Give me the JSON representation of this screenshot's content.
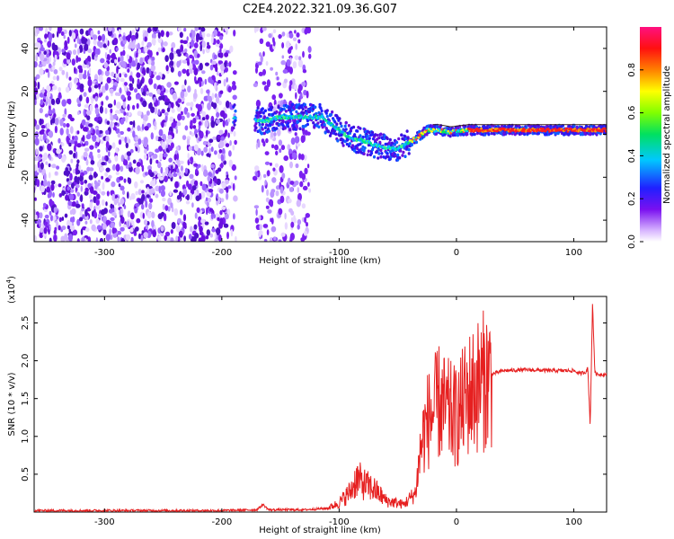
{
  "title": "C2E4.2022.321.09.36.G07",
  "colors": {
    "snr_line": "#e62020",
    "trace_dark": "#3a1f1f",
    "purple": "#6a10e0",
    "frame": "#000000"
  },
  "chart_data": [
    {
      "type": "heatmap",
      "xlabel": "Height of straight line (km)",
      "ylabel": "Frequency (Hz)",
      "xlim": [
        -360,
        128
      ],
      "ylim": [
        -50,
        50
      ],
      "xticks": [
        -300,
        -200,
        -100,
        0,
        100
      ],
      "yticks": [
        -40,
        -20,
        0,
        20,
        40
      ],
      "colorbar": {
        "label": "Normalized spectral amplitude",
        "range": [
          0,
          1
        ],
        "ticks": [
          0.0,
          0.2,
          0.4,
          0.6,
          0.8
        ],
        "colormap": "rainbow (purple-blue-cyan-green-yellow-red-magenta)"
      },
      "noise_region_x": [
        -360,
        -125
      ],
      "noise_gap_x": [
        -188,
        -172
      ],
      "ridge": {
        "description": "Doppler frequency ridge vs height",
        "x": [
          -190,
          -175,
          -165,
          -150,
          -130,
          -115,
          -100,
          -90,
          -80,
          -70,
          -60,
          -52,
          -45,
          -35,
          -25,
          -15,
          -5,
          10,
          30,
          60,
          90,
          110,
          128
        ],
        "y": [
          8,
          7,
          6,
          8,
          8,
          8,
          2,
          -2,
          -3,
          -5,
          -6,
          -7,
          -5,
          -2,
          2,
          2,
          1,
          2,
          2,
          2,
          2,
          2,
          2
        ]
      }
    },
    {
      "type": "line",
      "xlabel": "Height of straight line (km)",
      "ylabel": "SNR (10 * v/v)",
      "yscale_label": "(x10",
      "yscale_exp": "4",
      "yscale_tail": ")",
      "xlim": [
        -360,
        128
      ],
      "ylim": [
        0,
        2.85
      ],
      "xticks": [
        -300,
        -200,
        -100,
        0,
        100
      ],
      "yticks": [
        0.5,
        1.0,
        1.5,
        2.0,
        2.5
      ],
      "series": [
        {
          "x": [
            -360,
            -300,
            -200,
            -170,
            -165,
            -160,
            -130,
            -110,
            -100,
            -90,
            -85,
            -80,
            -70,
            -60,
            -45,
            -35,
            -30,
            -25,
            -20,
            -15,
            -10,
            -5,
            0,
            5,
            10,
            20,
            30,
            40,
            60,
            80,
            95,
            100,
            105,
            110,
            112,
            114,
            116,
            118,
            120,
            125,
            128
          ],
          "y": [
            0.02,
            0.02,
            0.02,
            0.03,
            0.1,
            0.03,
            0.03,
            0.05,
            0.12,
            0.28,
            0.45,
            0.38,
            0.3,
            0.15,
            0.1,
            0.25,
            0.9,
            1.2,
            1.3,
            1.45,
            1.35,
            1.3,
            1.25,
            1.4,
            1.55,
            1.7,
            1.82,
            1.87,
            1.88,
            1.87,
            1.87,
            1.87,
            1.83,
            1.85,
            1.9,
            1.15,
            2.75,
            1.85,
            1.82,
            1.82,
            1.82
          ]
        }
      ]
    }
  ]
}
